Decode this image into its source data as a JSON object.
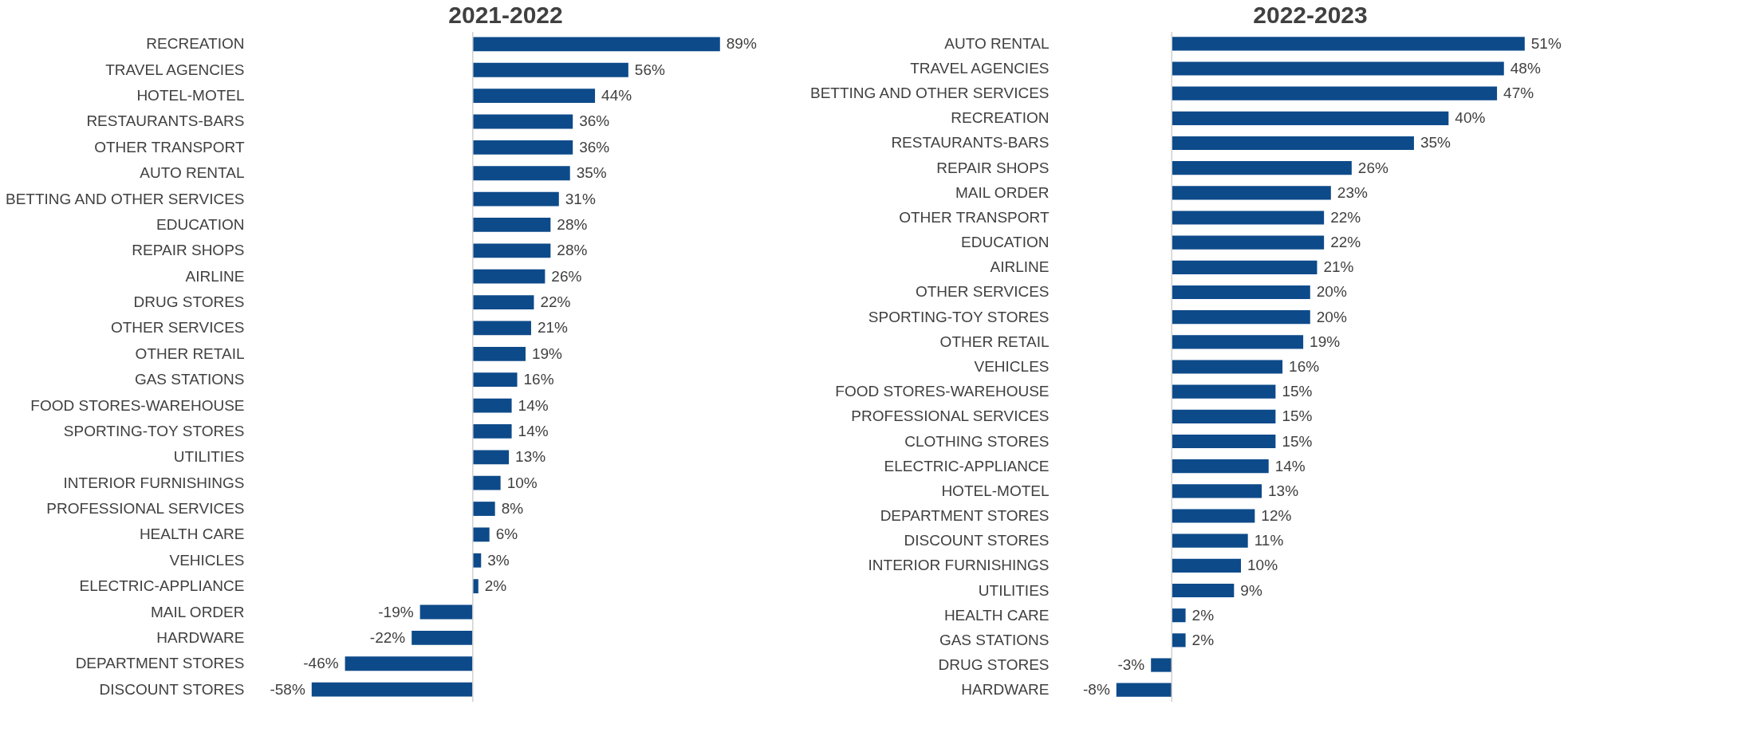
{
  "chart_data": [
    {
      "type": "bar",
      "orientation": "horizontal",
      "title": "2021-2022",
      "color": "#0d4a8a",
      "categories": [
        "RECREATION",
        "TRAVEL AGENCIES",
        "HOTEL-MOTEL",
        "RESTAURANTS-BARS",
        "OTHER TRANSPORT",
        "AUTO RENTAL",
        "BETTING AND OTHER SERVICES",
        "EDUCATION",
        "REPAIR SHOPS",
        "AIRLINE",
        "DRUG STORES",
        "OTHER SERVICES",
        "OTHER RETAIL",
        "GAS STATIONS",
        "FOOD STORES-WAREHOUSE",
        "SPORTING-TOY STORES",
        "UTILITIES",
        "INTERIOR FURNISHINGS",
        "PROFESSIONAL SERVICES",
        "HEALTH CARE",
        "VEHICLES",
        "ELECTRIC-APPLIANCE",
        "MAIL ORDER",
        "HARDWARE",
        "DEPARTMENT STORES",
        "DISCOUNT STORES"
      ],
      "values": [
        89,
        56,
        44,
        36,
        36,
        35,
        31,
        28,
        28,
        26,
        22,
        21,
        19,
        16,
        14,
        14,
        13,
        10,
        8,
        6,
        3,
        2,
        -19,
        -22,
        -46,
        -58
      ],
      "value_labels": [
        "89%",
        "56%",
        "44%",
        "36%",
        "36%",
        "35%",
        "31%",
        "28%",
        "28%",
        "26%",
        "22%",
        "21%",
        "19%",
        "16%",
        "14%",
        "14%",
        "13%",
        "10%",
        "8%",
        "6%",
        "3%",
        "2%",
        "-19%",
        "-22%",
        "-46%",
        "-58%"
      ]
    },
    {
      "type": "bar",
      "orientation": "horizontal",
      "title": "2022-2023",
      "color": "#0d4a8a",
      "categories": [
        "AUTO RENTAL",
        "TRAVEL AGENCIES",
        "BETTING AND OTHER SERVICES",
        "RECREATION",
        "RESTAURANTS-BARS",
        "REPAIR SHOPS",
        "MAIL ORDER",
        "OTHER TRANSPORT",
        "EDUCATION",
        "AIRLINE",
        "OTHER SERVICES",
        "SPORTING-TOY STORES",
        "OTHER RETAIL",
        "VEHICLES",
        "FOOD STORES-WAREHOUSE",
        "PROFESSIONAL SERVICES",
        "CLOTHING STORES",
        "ELECTRIC-APPLIANCE",
        "HOTEL-MOTEL",
        "DEPARTMENT STORES",
        "DISCOUNT STORES",
        "INTERIOR FURNISHINGS",
        "UTILITIES",
        "HEALTH CARE",
        "GAS STATIONS",
        "DRUG STORES",
        "HARDWARE"
      ],
      "values": [
        51,
        48,
        47,
        40,
        35,
        26,
        23,
        22,
        22,
        21,
        20,
        20,
        19,
        16,
        15,
        15,
        15,
        14,
        13,
        12,
        11,
        10,
        9,
        2,
        2,
        -3,
        -8
      ],
      "value_labels": [
        "51%",
        "48%",
        "47%",
        "40%",
        "35%",
        "26%",
        "23%",
        "22%",
        "22%",
        "21%",
        "20%",
        "20%",
        "19%",
        "16%",
        "15%",
        "15%",
        "15%",
        "14%",
        "13%",
        "12%",
        "11%",
        "10%",
        "9%",
        "2%",
        "2%",
        "-3%",
        "-8%"
      ]
    }
  ]
}
